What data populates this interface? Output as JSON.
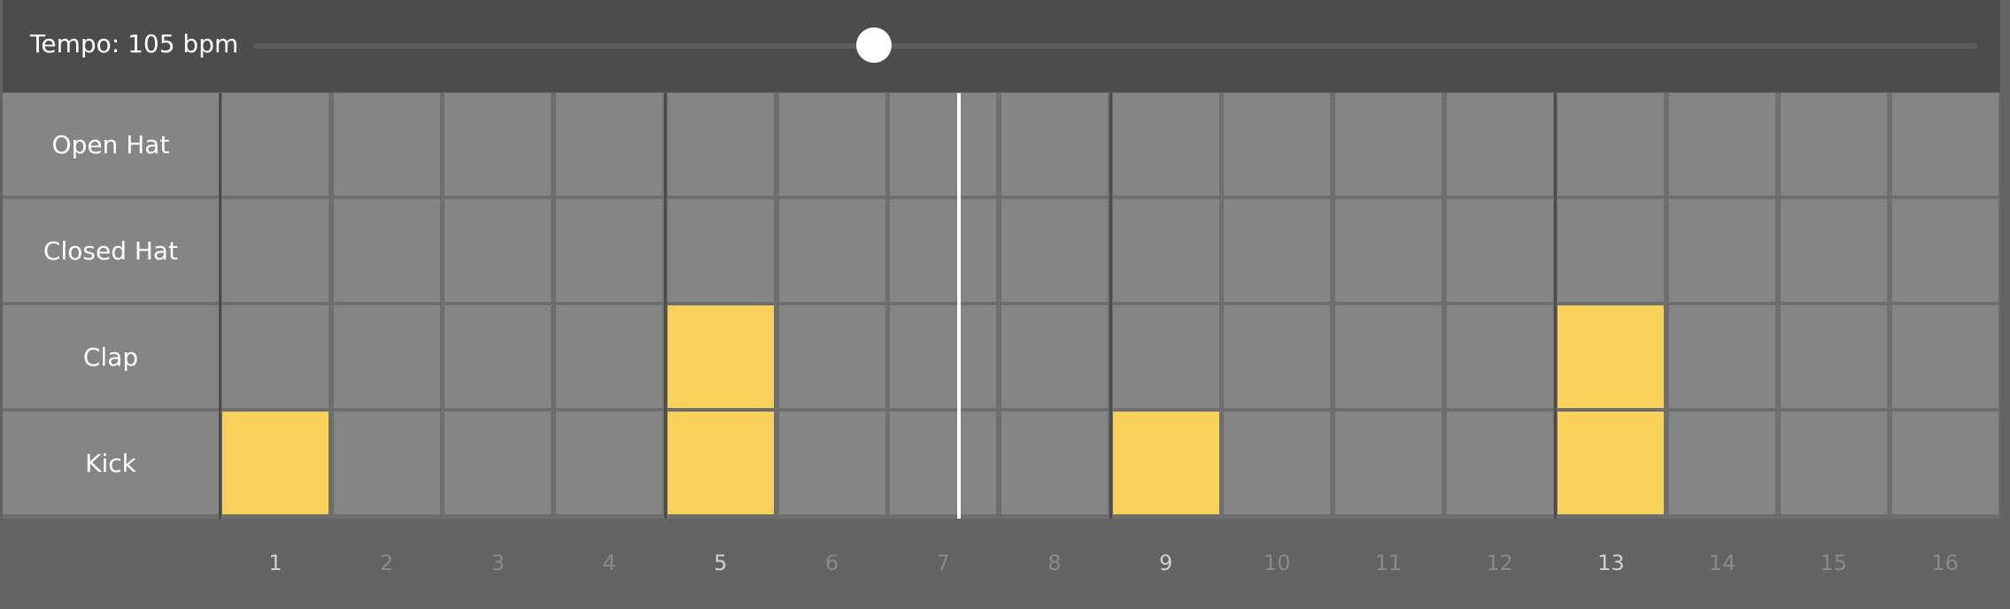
{
  "tempo": {
    "label": "Tempo: 105 bpm",
    "bpm": 105,
    "slider_fraction": 0.36
  },
  "tracks": [
    {
      "name": "Open Hat",
      "steps": [
        0,
        0,
        0,
        0,
        0,
        0,
        0,
        0,
        0,
        0,
        0,
        0,
        0,
        0,
        0,
        0
      ]
    },
    {
      "name": "Closed Hat",
      "steps": [
        0,
        0,
        0,
        0,
        0,
        0,
        0,
        0,
        0,
        0,
        0,
        0,
        0,
        0,
        0,
        0
      ]
    },
    {
      "name": "Clap",
      "steps": [
        0,
        0,
        0,
        0,
        1,
        0,
        0,
        0,
        0,
        0,
        0,
        0,
        1,
        0,
        0,
        0
      ]
    },
    {
      "name": "Kick",
      "steps": [
        1,
        0,
        0,
        0,
        1,
        0,
        0,
        0,
        1,
        0,
        0,
        0,
        1,
        0,
        0,
        0
      ]
    }
  ],
  "step_numbers": [
    "1",
    "2",
    "3",
    "4",
    "5",
    "6",
    "7",
    "8",
    "9",
    "10",
    "11",
    "12",
    "13",
    "14",
    "15",
    "16"
  ],
  "major_steps": [
    1,
    5,
    9,
    13
  ],
  "playhead_step": 7.6,
  "colors": {
    "active": "#f7d15a",
    "inactive": "#858585",
    "playhead": "#ffffff"
  }
}
